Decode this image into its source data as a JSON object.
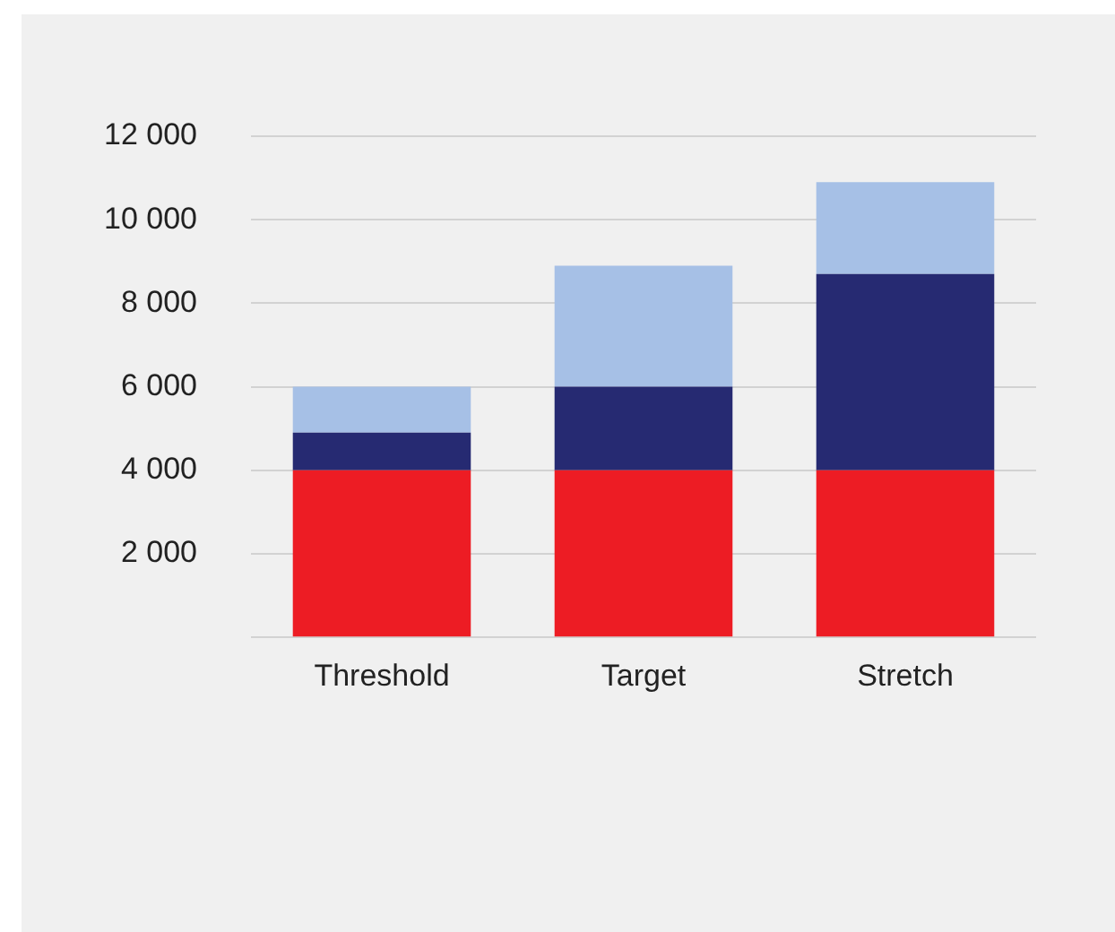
{
  "chart_data": {
    "type": "bar",
    "stacked": true,
    "categories": [
      "Threshold",
      "Target",
      "Stretch"
    ],
    "series": [
      {
        "color": "#ed1c24",
        "values": [
          4000,
          4000,
          4000
        ]
      },
      {
        "color": "#262a72",
        "values": [
          900,
          2000,
          4700
        ]
      },
      {
        "color": "#a6c0e6",
        "values": [
          1100,
          2900,
          2200
        ]
      }
    ],
    "ylim": [
      0,
      12000
    ],
    "yticks": [
      {
        "value": 0,
        "label": null
      },
      {
        "value": 2000,
        "label": "2 000"
      },
      {
        "value": 4000,
        "label": "4 000"
      },
      {
        "value": 6000,
        "label": "6 000"
      },
      {
        "value": 8000,
        "label": "8 000"
      },
      {
        "value": 10000,
        "label": "10 000"
      },
      {
        "value": 12000,
        "label": "12 000"
      }
    ],
    "grid": "y",
    "legend": false
  }
}
